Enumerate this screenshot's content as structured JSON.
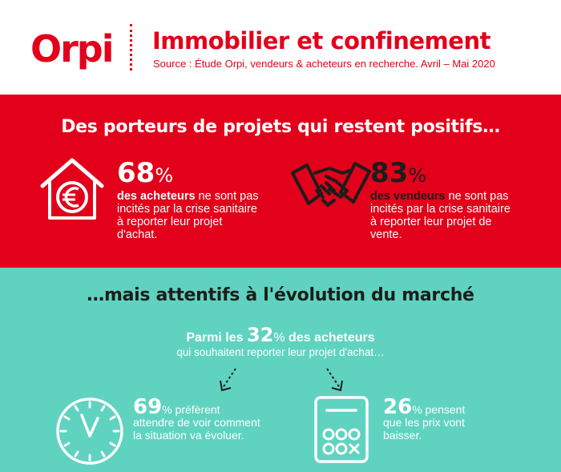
{
  "header": {
    "logo": "Orpi",
    "title": "Immobilier et confinement",
    "source": "Source : Étude Orpi, vendeurs & acheteurs en recherche. Avril – Mai 2020"
  },
  "positive_section": {
    "title": "Des porteurs de projets qui restent positifs…",
    "buyers": {
      "value": "68",
      "unit": "%",
      "bold_label": "des acheteurs",
      "text_start": " ne sont",
      "text_rest": "pas incités par la crise sanitaire à reporter leur projet d'achat.",
      "icon": "house-euro-icon"
    },
    "sellers": {
      "value": "83",
      "unit": "%",
      "bold_label": "des vendeurs",
      "text_start": " ne sont",
      "text_rest": "pas incités par la crise sanitaire à reporter leur projet de vente.",
      "icon": "handshake-icon"
    }
  },
  "attentive_section": {
    "title": "…mais attentifs à l'évolution du marché",
    "intro_prefix": "Parmi les ",
    "intro_value": "32",
    "intro_unit": "%",
    "intro_suffix": " des acheteurs",
    "intro_sub": "qui souhaitent reporter leur projet d'achat…",
    "wait": {
      "value": "69",
      "unit": "%",
      "text_start": " préfèrent",
      "text_rest": "attendre de voir comment la situation va évoluer.",
      "icon": "clock-icon"
    },
    "prices": {
      "value": "26",
      "unit": "%",
      "text_start": " pensent",
      "text_rest": "que les prix vont baisser.",
      "icon": "calculator-icon"
    }
  },
  "colors": {
    "brand_red": "#e2001a",
    "teal": "#5fd3c0",
    "dark": "#1d1d1b",
    "white": "#ffffff"
  }
}
